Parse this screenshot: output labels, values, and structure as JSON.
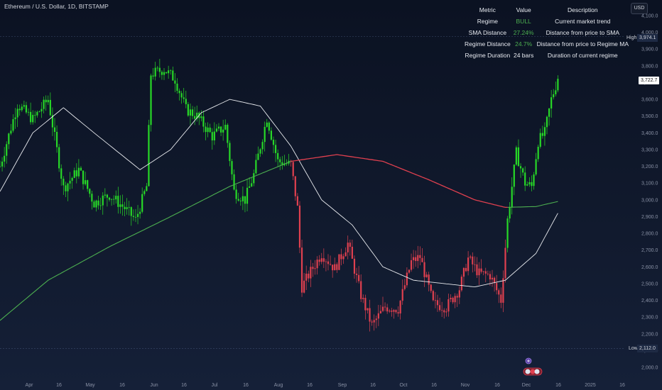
{
  "title": "Ethereum / U.S. Dollar, 1D, BITSTAMP",
  "currency": "USD",
  "colors": {
    "bull": "#27d827",
    "bear": "#e0404f",
    "sma": "#e8eaee",
    "regime_ma_bull": "#4caf50",
    "regime_ma_bear": "#e0404f",
    "background": "#0e1628"
  },
  "metrics_table": {
    "headers": [
      "Metric",
      "Value",
      "Description"
    ],
    "rows": [
      {
        "metric": "Regime",
        "value": "BULL",
        "description": "Current market trend"
      },
      {
        "metric": "SMA Distance",
        "value": "27.24%",
        "description": "Distance from price to SMA"
      },
      {
        "metric": "Regime Distance",
        "value": "24.7%",
        "description": "Distance from price to Regime MA"
      },
      {
        "metric": "Regime Duration",
        "value": "24 bars",
        "description": "Duration of current regime"
      }
    ]
  },
  "price_badges": {
    "last_price": "3,722.7",
    "high_label": "High",
    "high_value": "3,974.1",
    "low_label": "Low",
    "low_value": "2,112.0"
  },
  "chart_data": {
    "type": "candlestick",
    "x_axis_labels": [
      "Apr",
      "16",
      "May",
      "16",
      "Jun",
      "16",
      "Jul",
      "16",
      "Aug",
      "16",
      "Sep",
      "16",
      "Oct",
      "16",
      "Nov",
      "16",
      "Dec",
      "16",
      "2025",
      "16"
    ],
    "y_axis_ticks": [
      "4,100.0",
      "4,000.0",
      "3,900.0",
      "3,800.0",
      "3,700.0",
      "3,600.0",
      "3,500.0",
      "3,400.0",
      "3,300.0",
      "3,200.0",
      "3,100.0",
      "3,000.0",
      "2,900.0",
      "2,800.0",
      "2,700.0",
      "2,600.0",
      "2,500.0",
      "2,400.0",
      "2,300.0",
      "2,200.0",
      "2,100.0",
      "2,000.0"
    ],
    "ylim": [
      1950,
      4140
    ],
    "price_anchors": [
      {
        "date": "Mar 20",
        "close": 3200
      },
      {
        "date": "Mar 28",
        "close": 3570
      },
      {
        "date": "Apr 4",
        "close": 3480
      },
      {
        "date": "Apr 11",
        "close": 3600
      },
      {
        "date": "Apr 18",
        "close": 3070
      },
      {
        "date": "Apr 25",
        "close": 3180
      },
      {
        "date": "May 2",
        "close": 2980
      },
      {
        "date": "May 9",
        "close": 3030
      },
      {
        "date": "May 16",
        "close": 2950
      },
      {
        "date": "May 21",
        "close": 2880
      },
      {
        "date": "May 26",
        "close": 3080
      },
      {
        "date": "May 28",
        "close": 3750
      },
      {
        "date": "Jun 3",
        "close": 3780
      },
      {
        "date": "Jun 8",
        "close": 3720
      },
      {
        "date": "Jun 13",
        "close": 3540
      },
      {
        "date": "Jun 18",
        "close": 3500
      },
      {
        "date": "Jun 25",
        "close": 3380
      },
      {
        "date": "Jul 1",
        "close": 3440
      },
      {
        "date": "Jul 5",
        "close": 3050
      },
      {
        "date": "Jul 10",
        "close": 3000
      },
      {
        "date": "Jul 14",
        "close": 3150
      },
      {
        "date": "Jul 20",
        "close": 3490
      },
      {
        "date": "Jul 25",
        "close": 3230
      },
      {
        "date": "Jul 31",
        "close": 3210
      },
      {
        "date": "Aug 3",
        "close": 2950
      },
      {
        "date": "Aug 5",
        "close": 2480
      },
      {
        "date": "Aug 8",
        "close": 2550
      },
      {
        "date": "Aug 14",
        "close": 2680
      },
      {
        "date": "Aug 20",
        "close": 2590
      },
      {
        "date": "Aug 26",
        "close": 2740
      },
      {
        "date": "Sep 1",
        "close": 2430
      },
      {
        "date": "Sep 6",
        "close": 2250
      },
      {
        "date": "Sep 12",
        "close": 2360
      },
      {
        "date": "Sep 18",
        "close": 2350
      },
      {
        "date": "Sep 24",
        "close": 2630
      },
      {
        "date": "Sep 28",
        "close": 2660
      },
      {
        "date": "Oct 4",
        "close": 2380
      },
      {
        "date": "Oct 10",
        "close": 2360
      },
      {
        "date": "Oct 16",
        "close": 2470
      },
      {
        "date": "Oct 20",
        "close": 2650
      },
      {
        "date": "Oct 25",
        "close": 2560
      },
      {
        "date": "Oct 30",
        "close": 2550
      },
      {
        "date": "Nov 4",
        "close": 2400
      },
      {
        "date": "Nov 7",
        "close": 2880
      },
      {
        "date": "Nov 11",
        "close": 3280
      },
      {
        "date": "Nov 15",
        "close": 3100
      },
      {
        "date": "Nov 18",
        "close": 3080
      },
      {
        "date": "Nov 21",
        "close": 3350
      },
      {
        "date": "Nov 24",
        "close": 3400
      },
      {
        "date": "Nov 27",
        "close": 3600
      },
      {
        "date": "Nov 30",
        "close": 3722.7
      }
    ],
    "sma_anchors": [
      {
        "date": "Mar 20",
        "value": 3050
      },
      {
        "date": "Apr 4",
        "value": 3400
      },
      {
        "date": "Apr 18",
        "value": 3550
      },
      {
        "date": "May 2",
        "value": 3400
      },
      {
        "date": "May 23",
        "value": 3180
      },
      {
        "date": "Jun 6",
        "value": 3300
      },
      {
        "date": "Jun 20",
        "value": 3520
      },
      {
        "date": "Jul 3",
        "value": 3600
      },
      {
        "date": "Jul 17",
        "value": 3560
      },
      {
        "date": "Jul 31",
        "value": 3320
      },
      {
        "date": "Aug 14",
        "value": 3000
      },
      {
        "date": "Aug 28",
        "value": 2850
      },
      {
        "date": "Sep 11",
        "value": 2600
      },
      {
        "date": "Sep 25",
        "value": 2520
      },
      {
        "date": "Oct 9",
        "value": 2500
      },
      {
        "date": "Oct 23",
        "value": 2480
      },
      {
        "date": "Nov 6",
        "value": 2520
      },
      {
        "date": "Nov 20",
        "value": 2680
      },
      {
        "date": "Nov 30",
        "value": 2920
      }
    ],
    "regime_ma_anchors": [
      {
        "date": "Mar 20",
        "value": 2280
      },
      {
        "date": "Apr 11",
        "value": 2520
      },
      {
        "date": "May 9",
        "value": 2720
      },
      {
        "date": "Jun 6",
        "value": 2900
      },
      {
        "date": "Jul 3",
        "value": 3080
      },
      {
        "date": "Jul 31",
        "value": 3230
      },
      {
        "date": "Aug 21",
        "value": 3270
      },
      {
        "date": "Sep 11",
        "value": 3230
      },
      {
        "date": "Oct 2",
        "value": 3120
      },
      {
        "date": "Oct 23",
        "value": 3000
      },
      {
        "date": "Nov 6",
        "value": 2955
      },
      {
        "date": "Nov 20",
        "value": 2960
      },
      {
        "date": "Nov 30",
        "value": 2990
      }
    ],
    "regime_bear_from": "Jul 31",
    "regime_bull_from": "Nov 7",
    "grid": false
  }
}
